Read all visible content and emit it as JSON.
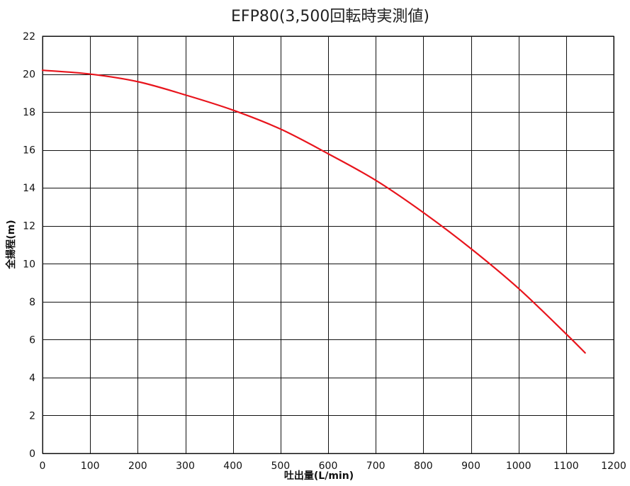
{
  "chart_data": {
    "type": "line",
    "title": "EFP80(3,500回転時実測値)",
    "xlabel": "吐出量(L/min)",
    "ylabel": "全揚程(m)",
    "xlim": [
      0,
      1200
    ],
    "ylim": [
      0,
      22
    ],
    "xticks": [
      0,
      100,
      200,
      300,
      400,
      500,
      600,
      700,
      800,
      900,
      1000,
      1100,
      1200
    ],
    "yticks": [
      0,
      2,
      4,
      6,
      8,
      10,
      12,
      14,
      16,
      18,
      20,
      22
    ],
    "grid": true,
    "legend": "none",
    "series": [
      {
        "color": "#e8141c",
        "x": [
          0,
          100,
          200,
          300,
          400,
          500,
          600,
          700,
          800,
          900,
          1000,
          1100,
          1140
        ],
        "y": [
          20.2,
          20.0,
          19.6,
          18.9,
          18.1,
          17.1,
          15.8,
          14.4,
          12.7,
          10.8,
          8.7,
          6.3,
          5.3
        ]
      }
    ]
  }
}
